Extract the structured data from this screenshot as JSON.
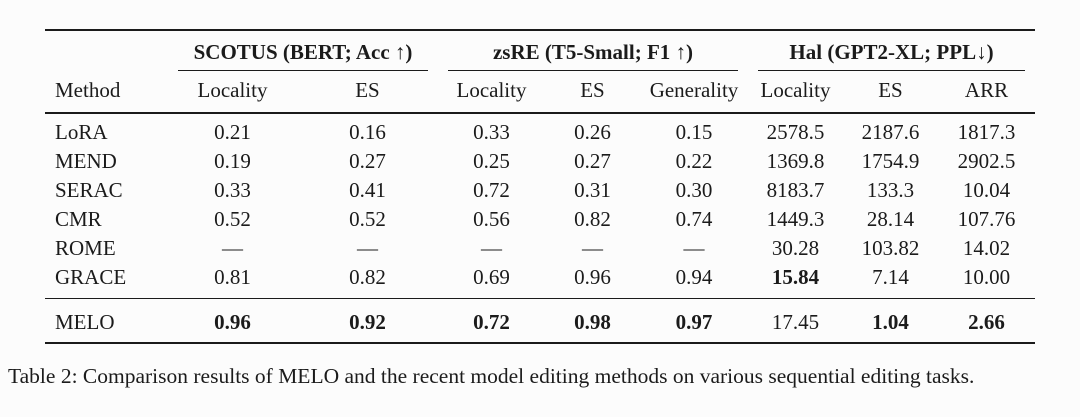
{
  "table": {
    "groups": [
      {
        "label": "SCOTUS (BERT; Acc ↑)"
      },
      {
        "label": "zsRE (T5-Small; F1 ↑)"
      },
      {
        "label": "Hal (GPT2-XL; PPL↓)"
      }
    ],
    "columns": [
      "Method",
      "Locality",
      "ES",
      "Locality",
      "ES",
      "Generality",
      "Locality",
      "ES",
      "ARR"
    ],
    "rows": [
      {
        "method": "LoRA",
        "values": [
          "0.21",
          "0.16",
          "0.33",
          "0.26",
          "0.15",
          "2578.5",
          "2187.6",
          "1817.3"
        ],
        "bold": []
      },
      {
        "method": "MEND",
        "values": [
          "0.19",
          "0.27",
          "0.25",
          "0.27",
          "0.22",
          "1369.8",
          "1754.9",
          "2902.5"
        ],
        "bold": []
      },
      {
        "method": "SERAC",
        "values": [
          "0.33",
          "0.41",
          "0.72",
          "0.31",
          "0.30",
          "8183.7",
          "133.3",
          "10.04"
        ],
        "bold": []
      },
      {
        "method": "CMR",
        "values": [
          "0.52",
          "0.52",
          "0.56",
          "0.82",
          "0.74",
          "1449.3",
          "28.14",
          "107.76"
        ],
        "bold": []
      },
      {
        "method": "ROME",
        "values": [
          "—",
          "—",
          "—",
          "—",
          "—",
          "30.28",
          "103.82",
          "14.02"
        ],
        "bold": []
      },
      {
        "method": "GRACE",
        "values": [
          "0.81",
          "0.82",
          "0.69",
          "0.96",
          "0.94",
          "15.84",
          "7.14",
          "10.00"
        ],
        "bold": [
          5
        ]
      }
    ],
    "highlight_row": {
      "method": "MELO",
      "values": [
        "0.96",
        "0.92",
        "0.72",
        "0.98",
        "0.97",
        "17.45",
        "1.04",
        "2.66"
      ],
      "bold": [
        0,
        1,
        2,
        3,
        4,
        6,
        7
      ]
    }
  },
  "caption": "Table 2: Comparison results of MELO and the recent model editing methods on various sequential editing tasks."
}
